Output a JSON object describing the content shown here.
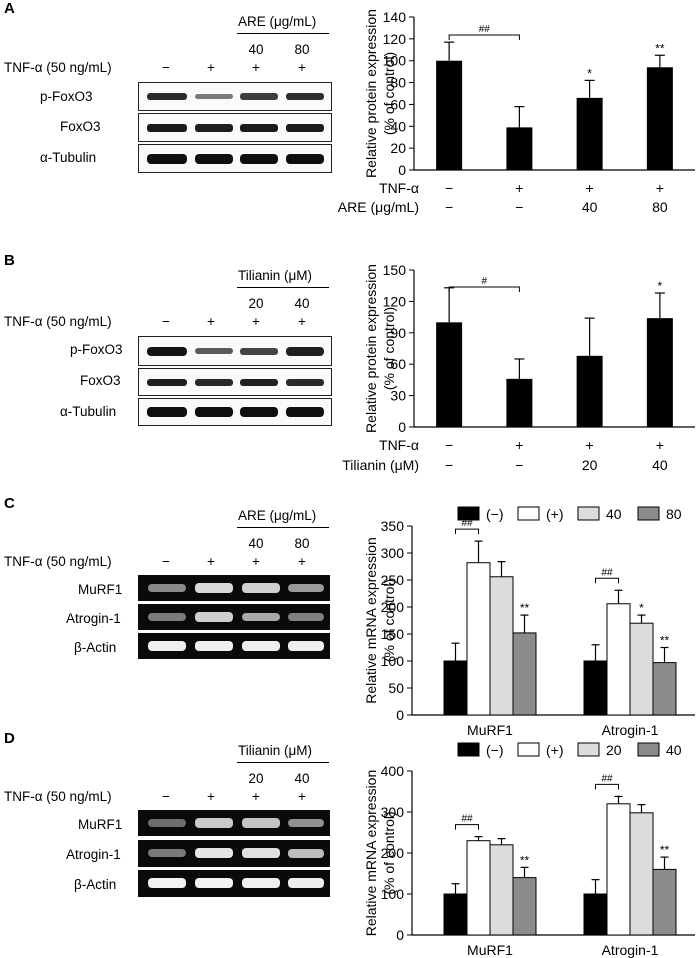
{
  "panels": [
    {
      "label": "A",
      "treatment_header": "ARE (μg/mL)",
      "doses": [
        "40",
        "80"
      ],
      "tnf_label": "TNF-α (50 ng/mL)",
      "tnf_signs": [
        "−",
        "+",
        "+",
        "+"
      ],
      "blot_rows": [
        "p-FoxO3",
        "FoxO3",
        "α-Tubulin"
      ],
      "blot_type": "western"
    },
    {
      "label": "B",
      "treatment_header": "Tilianin (μM)",
      "doses": [
        "20",
        "40"
      ],
      "tnf_label": "TNF-α (50 ng/mL)",
      "tnf_signs": [
        "−",
        "+",
        "+",
        "+"
      ],
      "blot_rows": [
        "p-FoxO3",
        "FoxO3",
        "α-Tubulin"
      ],
      "blot_type": "western"
    },
    {
      "label": "C",
      "treatment_header": "ARE (μg/mL)",
      "doses": [
        "40",
        "80"
      ],
      "tnf_label": "TNF-α (50 ng/mL)",
      "tnf_signs": [
        "−",
        "+",
        "+",
        "+"
      ],
      "blot_rows": [
        "MuRF1",
        "Atrogin-1",
        "β-Actin"
      ],
      "blot_type": "gel"
    },
    {
      "label": "D",
      "treatment_header": "Tilianin (μM)",
      "doses": [
        "20",
        "40"
      ],
      "tnf_label": "TNF-α (50 ng/mL)",
      "tnf_signs": [
        "−",
        "+",
        "+",
        "+"
      ],
      "blot_rows": [
        "MuRF1",
        "Atrogin-1",
        "β-Actin"
      ],
      "blot_type": "gel"
    }
  ],
  "chart_data": [
    {
      "type": "bar",
      "panel": "A",
      "ylabel_line1": "Relative protein expression",
      "ylabel_line2": "(% of control)",
      "ylim": [
        0,
        140
      ],
      "yticks": [
        0,
        20,
        40,
        60,
        80,
        100,
        120,
        140
      ],
      "values": [
        100,
        39,
        66,
        94
      ],
      "errors": [
        17,
        19,
        16,
        11
      ],
      "significance": [
        "",
        "",
        "*",
        "**"
      ],
      "bracket": {
        "from": 0,
        "to": 1,
        "label": "##"
      },
      "row1_label": "TNF-α",
      "row1_values": [
        "−",
        "+",
        "+",
        "+"
      ],
      "row2_label": "ARE (μg/mL)",
      "row2_values": [
        "−",
        "−",
        "40",
        "80"
      ]
    },
    {
      "type": "bar",
      "panel": "B",
      "ylabel_line1": "Relative protein expression",
      "ylabel_line2": "(% of control)",
      "ylim": [
        0,
        150
      ],
      "yticks": [
        0,
        30,
        60,
        90,
        120,
        150
      ],
      "values": [
        100,
        46,
        68,
        104
      ],
      "errors": [
        33,
        19,
        36,
        24
      ],
      "significance": [
        "",
        "",
        "",
        "*"
      ],
      "bracket": {
        "from": 0,
        "to": 1,
        "label": "#"
      },
      "row1_label": "TNF-α",
      "row1_values": [
        "−",
        "+",
        "+",
        "+"
      ],
      "row2_label": "Tilianin (μM)",
      "row2_values": [
        "−",
        "−",
        "20",
        "40"
      ]
    },
    {
      "type": "grouped_bar",
      "panel": "C",
      "ylabel_line1": "Relative mRNA expression",
      "ylabel_line2": "(% of control)",
      "ylim": [
        0,
        350
      ],
      "yticks": [
        0,
        50,
        100,
        150,
        200,
        250,
        300,
        350
      ],
      "categories": [
        "MuRF1",
        "Atrogin-1"
      ],
      "legend": [
        "(−)",
        "(+)",
        "40",
        "80"
      ],
      "series_colors": [
        "#000000",
        "#ffffff",
        "#dcdcdc",
        "#8c8c8c"
      ],
      "values": [
        [
          100,
          282,
          256,
          152
        ],
        [
          100,
          206,
          170,
          97
        ]
      ],
      "errors": [
        [
          33,
          40,
          28,
          33
        ],
        [
          30,
          25,
          15,
          28
        ]
      ],
      "significance": [
        [
          "",
          "",
          "",
          "**"
        ],
        [
          "",
          "",
          "*",
          "**"
        ]
      ],
      "bracket_label": "##"
    },
    {
      "type": "grouped_bar",
      "panel": "D",
      "ylabel_line1": "Relative mRNA expression",
      "ylabel_line2": "(% of control)",
      "ylim": [
        0,
        400
      ],
      "yticks": [
        0,
        100,
        200,
        300,
        400
      ],
      "categories": [
        "MuRF1",
        "Atrogin-1"
      ],
      "legend": [
        "(−)",
        "(+)",
        "20",
        "40"
      ],
      "series_colors": [
        "#000000",
        "#ffffff",
        "#dcdcdc",
        "#8c8c8c"
      ],
      "values": [
        [
          100,
          230,
          220,
          140
        ],
        [
          100,
          320,
          298,
          160
        ]
      ],
      "errors": [
        [
          25,
          10,
          15,
          25
        ],
        [
          35,
          18,
          20,
          30
        ]
      ],
      "significance": [
        [
          "",
          "",
          "",
          "**"
        ],
        [
          "",
          "",
          "",
          "**"
        ]
      ],
      "bracket_label": "##"
    }
  ]
}
